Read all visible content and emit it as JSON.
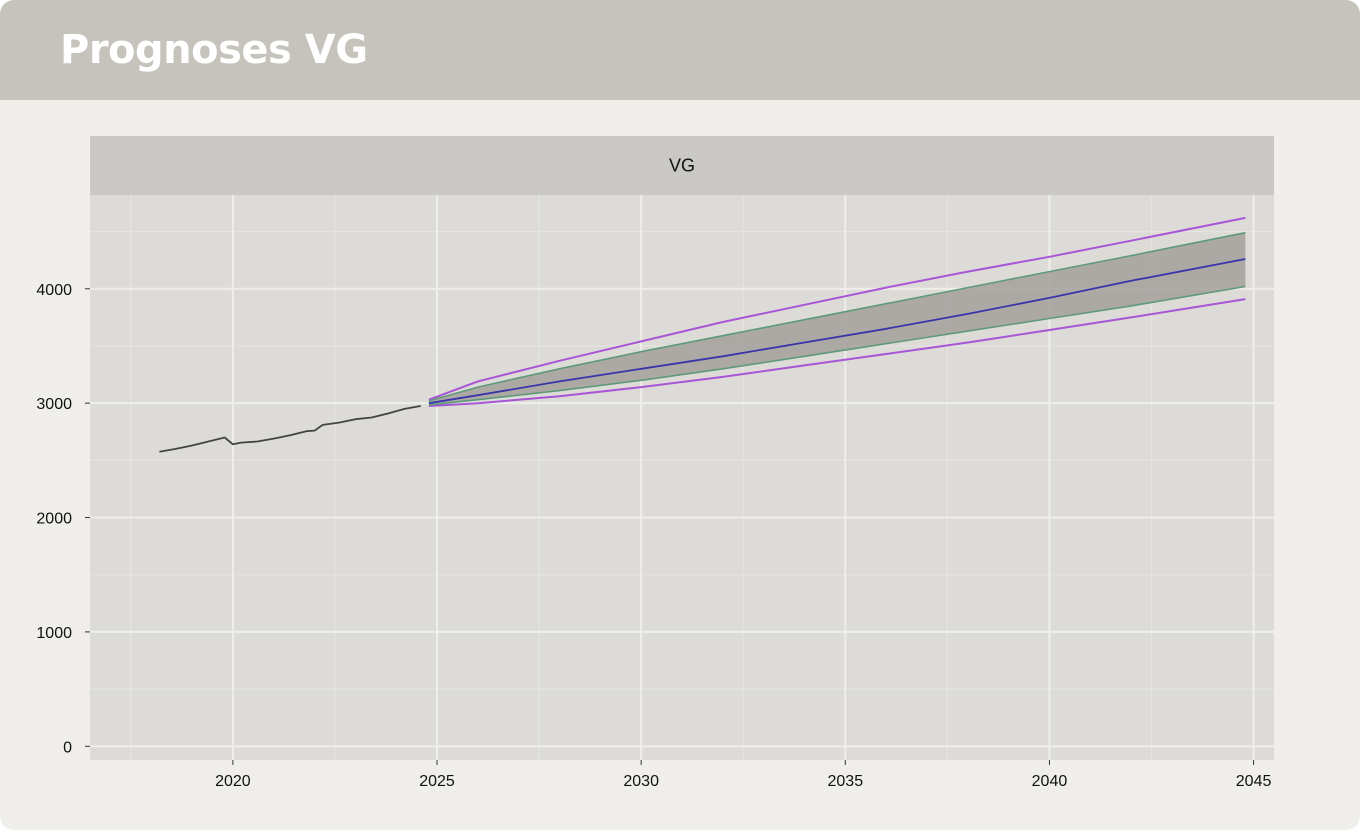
{
  "header": {
    "title": "Prognoses VG"
  },
  "chart_data": {
    "type": "line",
    "panel_title": "VG",
    "title": "",
    "xlabel": "",
    "ylabel": "",
    "xlim": [
      2016.5,
      2045.5
    ],
    "ylim": [
      -120,
      4820
    ],
    "x_ticks": [
      2020,
      2025,
      2030,
      2035,
      2040,
      2045
    ],
    "y_ticks": [
      0,
      1000,
      2000,
      3000,
      4000
    ],
    "grid": true,
    "legend": "none",
    "colors": {
      "panel_bg": "#dcdbd7",
      "strip_bg": "#c9c8c4",
      "grid_major": "#efeeeb",
      "grid_minor": "#e5e4e0",
      "history_line": "#444444",
      "forecast_line": "#3a35a8",
      "inner_band_fill": "#a3a09c",
      "inner_band_edge": "#5e9a7a",
      "outer_band_edge": "#a855d6"
    },
    "series": [
      {
        "role": "history",
        "x": [
          2018.2,
          2018.6,
          2019.0,
          2019.4,
          2019.8,
          2020.0,
          2020.2,
          2020.6,
          2021.0,
          2021.4,
          2021.8,
          2022.0,
          2022.2,
          2022.6,
          2023.0,
          2023.4,
          2023.8,
          2024.2,
          2024.6
        ],
        "y": [
          2575,
          2600,
          2630,
          2665,
          2700,
          2640,
          2655,
          2665,
          2690,
          2720,
          2755,
          2760,
          2810,
          2830,
          2860,
          2875,
          2910,
          2950,
          2975
        ]
      },
      {
        "role": "forecast",
        "x": [
          2024.8,
          2026,
          2028,
          2030,
          2032,
          2034,
          2036,
          2038,
          2040,
          2042,
          2044.8
        ],
        "y": [
          3000,
          3070,
          3190,
          3300,
          3410,
          3530,
          3650,
          3780,
          3920,
          4070,
          4260
        ]
      },
      {
        "role": "band_inner_upper",
        "x": [
          2024.8,
          2026,
          2028,
          2030,
          2032,
          2034,
          2036,
          2038,
          2040,
          2042,
          2044.8
        ],
        "y": [
          3020,
          3140,
          3300,
          3450,
          3590,
          3730,
          3870,
          4010,
          4150,
          4290,
          4490
        ]
      },
      {
        "role": "band_inner_lower",
        "x": [
          2024.8,
          2026,
          2028,
          2030,
          2032,
          2034,
          2036,
          2038,
          2040,
          2042,
          2044.8
        ],
        "y": [
          2985,
          3030,
          3110,
          3200,
          3300,
          3410,
          3520,
          3630,
          3740,
          3850,
          4020
        ]
      },
      {
        "role": "band_outer_upper",
        "x": [
          2024.8,
          2026,
          2028,
          2030,
          2032,
          2034,
          2036,
          2038,
          2040,
          2042,
          2044.8
        ],
        "y": [
          3030,
          3190,
          3370,
          3540,
          3710,
          3860,
          4010,
          4150,
          4280,
          4420,
          4620
        ]
      },
      {
        "role": "band_outer_lower",
        "x": [
          2024.8,
          2026,
          2028,
          2030,
          2032,
          2034,
          2036,
          2038,
          2040,
          2042,
          2044.8
        ],
        "y": [
          2975,
          3000,
          3060,
          3140,
          3230,
          3330,
          3430,
          3530,
          3640,
          3750,
          3910
        ]
      }
    ]
  }
}
